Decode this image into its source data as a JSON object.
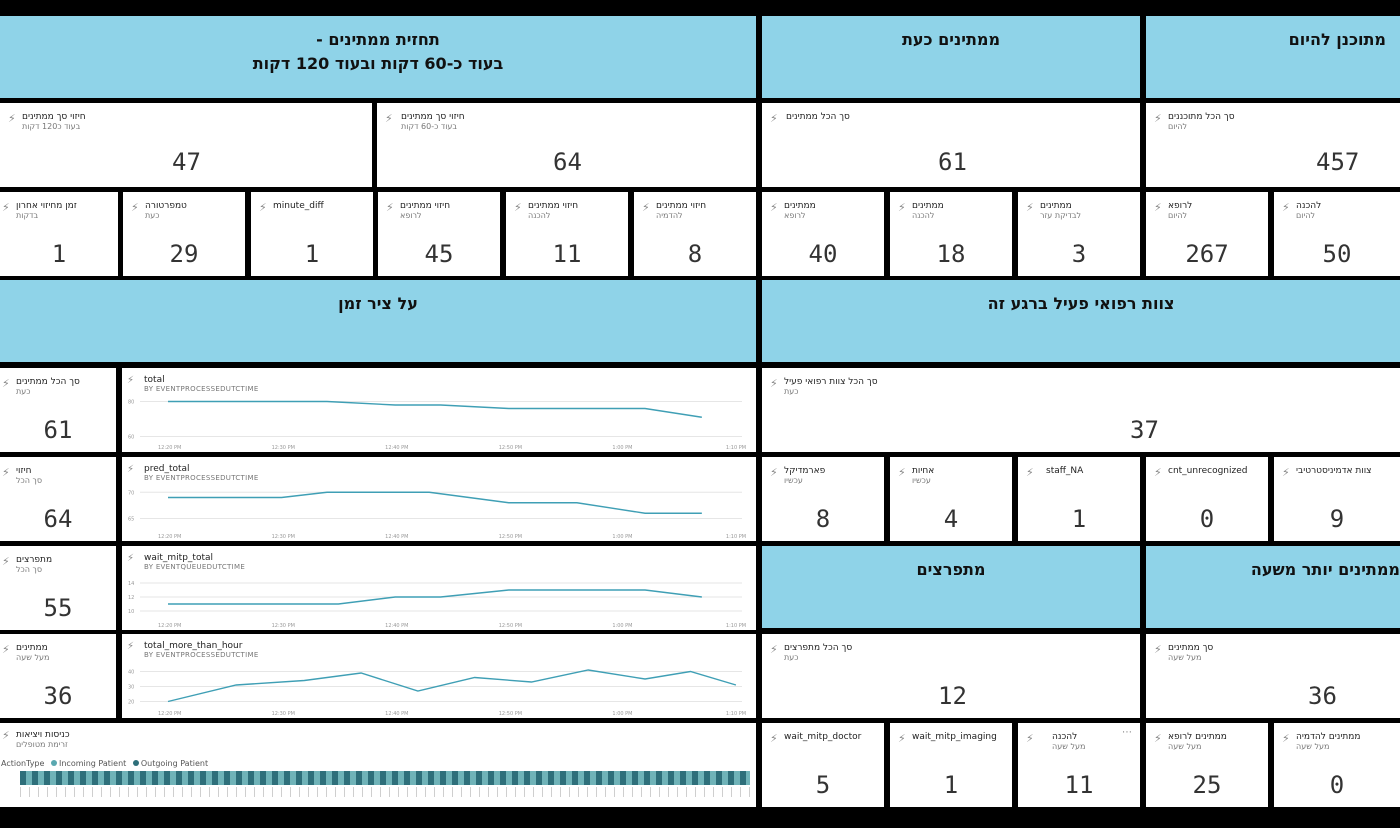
{
  "headers": {
    "forecast_line1": "תחזית ממתינים -",
    "forecast_line2": "בעוד כ-60 דקות ובעוד 120 דקות",
    "waiting_now": "ממתינים כעת",
    "planned_today": "מתוכנן להיום",
    "timeline": "על ציר זמן",
    "active_staff": "צוות רפואי פעיל ברגע זה",
    "bursting": "מתפרצים",
    "more_than_hour": "ממתינים יותר משעה"
  },
  "tiles": {
    "pred120": {
      "title": "חיזוי סך ממתינים",
      "sub": "בעוד כ120 דקות",
      "value": "47"
    },
    "pred60": {
      "title": "חיזוי סך ממתינים",
      "sub": "בעוד כ-60 דקות",
      "value": "64"
    },
    "total_waiting": {
      "title": "סך הכל ממתינים",
      "sub": "",
      "value": "61"
    },
    "total_planned": {
      "title": "סך הכל מתוכננים",
      "sub": "להיום",
      "value": "457"
    },
    "last_pred_time": {
      "title": "זמן מחיזוי אחרון",
      "sub": "בדקות",
      "value": "1"
    },
    "temperature": {
      "title": "טמפרטורה",
      "sub": "כעת",
      "value": "29"
    },
    "minute_diff": {
      "title": "minute_diff",
      "sub": "",
      "value": "1"
    },
    "pred_doctor": {
      "title": "חיזוי ממתינים",
      "sub": "לרופא",
      "value": "45"
    },
    "pred_prep": {
      "title": "חיזוי ממתינים",
      "sub": "להכנה",
      "value": "11"
    },
    "pred_imaging": {
      "title": "חיזוי ממתינים",
      "sub": "להדמיה",
      "value": "8"
    },
    "wait_doctor": {
      "title": "ממתינים",
      "sub": "לרופא",
      "value": "40"
    },
    "wait_prep": {
      "title": "ממתינים",
      "sub": "להכנה",
      "value": "18"
    },
    "wait_exam": {
      "title": "ממתינים",
      "sub": "לבדיקת עזר",
      "value": "3"
    },
    "planned_doctor": {
      "title": "לרופא",
      "sub": "להיום",
      "value": "267"
    },
    "planned_prep": {
      "title": "להכנה",
      "sub": "להיום",
      "value": "50"
    },
    "side_total": {
      "title": "סך הכל ממתינים",
      "sub": "כעת",
      "value": "61"
    },
    "side_pred": {
      "title": "חיזוי",
      "sub": "סך הכל",
      "value": "64"
    },
    "side_burst": {
      "title": "מתפרצים",
      "sub": "סך הכל",
      "value": "55"
    },
    "side_hour": {
      "title": "ממתינים",
      "sub": "מעל שעה",
      "value": "36"
    },
    "staff_total": {
      "title": "סך הכל צוות רפואי פעיל",
      "sub": "כעת",
      "value": "37"
    },
    "paramedic": {
      "title": "פארמדיקל",
      "sub": "עכשיו",
      "value": "8"
    },
    "nurses": {
      "title": "אחיות",
      "sub": "עכשיו",
      "value": "4"
    },
    "staff_na": {
      "title": "staff_NA",
      "sub": "",
      "value": "1"
    },
    "cnt_unrec": {
      "title": "cnt_unrecognized",
      "sub": "",
      "value": "0"
    },
    "admin_staff": {
      "title": "צוות אדמיניסטרטיבי",
      "sub": "",
      "value": "9"
    },
    "burst_total": {
      "title": "סך הכל מתפרצים",
      "sub": "כעת",
      "value": "12"
    },
    "hour_total": {
      "title": "סך ממתינים",
      "sub": "מעל שעה",
      "value": "36"
    },
    "wm_doctor": {
      "title": "wait_mitp_doctor",
      "sub": "",
      "value": "5"
    },
    "wm_imaging": {
      "title": "wait_mitp_imaging",
      "sub": "",
      "value": "1"
    },
    "hour_prep": {
      "title": "להכנה",
      "sub": "מעל שעה",
      "value": "11"
    },
    "hour_doctor": {
      "title": "ממתינים לרופא",
      "sub": "מעל שעה",
      "value": "25"
    },
    "hour_imaging": {
      "title": "ממתינים להדמיה",
      "sub": "מעל שעה",
      "value": "0"
    },
    "inout": {
      "title": "כניסות ויציאות",
      "sub": "זרימת מטופלים"
    }
  },
  "legend": {
    "label": "ActionType",
    "incoming": "Incoming Patient",
    "outgoing": "Outgoing Patient",
    "incoming_color": "#5aa8b0",
    "outgoing_color": "#2e6f7a"
  },
  "icons": {
    "pin": "lightning-pin-icon",
    "more": "more-icon"
  },
  "chart_data": [
    {
      "type": "line",
      "title": "total",
      "subtitle": "BY EVENTPROCESSEDUTCTIME",
      "x": [
        "12:20 PM",
        "12:30 PM",
        "12:40 PM",
        "12:50 PM",
        "1:00 PM",
        "1:10 PM"
      ],
      "y_ticks": [
        80,
        60
      ],
      "ylim": [
        58,
        82
      ],
      "points": [
        [
          0,
          80
        ],
        [
          1,
          80
        ],
        [
          1.4,
          80
        ],
        [
          2,
          78
        ],
        [
          2.4,
          78
        ],
        [
          3,
          76
        ],
        [
          3.6,
          76
        ],
        [
          4.2,
          76
        ],
        [
          4.7,
          71
        ]
      ]
    },
    {
      "type": "line",
      "title": "pred_total",
      "subtitle": "BY EVENTPROCESSEDUTCTIME",
      "x": [
        "12:20 PM",
        "12:30 PM",
        "12:40 PM",
        "12:50 PM",
        "1:00 PM",
        "1:10 PM"
      ],
      "y_ticks": [
        70,
        65
      ],
      "ylim": [
        63,
        71
      ],
      "points": [
        [
          0,
          69
        ],
        [
          1,
          69
        ],
        [
          1.4,
          70
        ],
        [
          2.3,
          70
        ],
        [
          3,
          68
        ],
        [
          3.6,
          68
        ],
        [
          4.2,
          66
        ],
        [
          4.7,
          66
        ]
      ]
    },
    {
      "type": "line",
      "title": "wait_mitp_total",
      "subtitle": "BY EVENTQUEUEDUTCTIME",
      "x": [
        "12:20 PM",
        "12:30 PM",
        "12:40 PM",
        "12:50 PM",
        "1:00 PM",
        "1:10 PM"
      ],
      "y_ticks": [
        14,
        12,
        10
      ],
      "ylim": [
        9,
        15
      ],
      "points": [
        [
          0,
          11
        ],
        [
          1,
          11
        ],
        [
          1.5,
          11
        ],
        [
          2,
          12
        ],
        [
          2.4,
          12
        ],
        [
          3,
          13
        ],
        [
          3.6,
          13
        ],
        [
          4.2,
          13
        ],
        [
          4.7,
          12
        ]
      ]
    },
    {
      "type": "line",
      "title": "total_more_than_hour",
      "subtitle": "BY EVENTPROCESSEDUTCTIME",
      "x": [
        "12:20 PM",
        "12:30 PM",
        "12:40 PM",
        "12:50 PM",
        "1:00 PM",
        "1:10 PM"
      ],
      "y_ticks": [
        40,
        30,
        20
      ],
      "ylim": [
        17,
        45
      ],
      "points": [
        [
          0,
          20
        ],
        [
          0.6,
          31
        ],
        [
          1.2,
          34
        ],
        [
          1.7,
          39
        ],
        [
          2.2,
          27
        ],
        [
          2.7,
          36
        ],
        [
          3.2,
          33
        ],
        [
          3.7,
          41
        ],
        [
          4.2,
          35
        ],
        [
          4.6,
          40
        ],
        [
          5,
          31
        ]
      ]
    }
  ]
}
